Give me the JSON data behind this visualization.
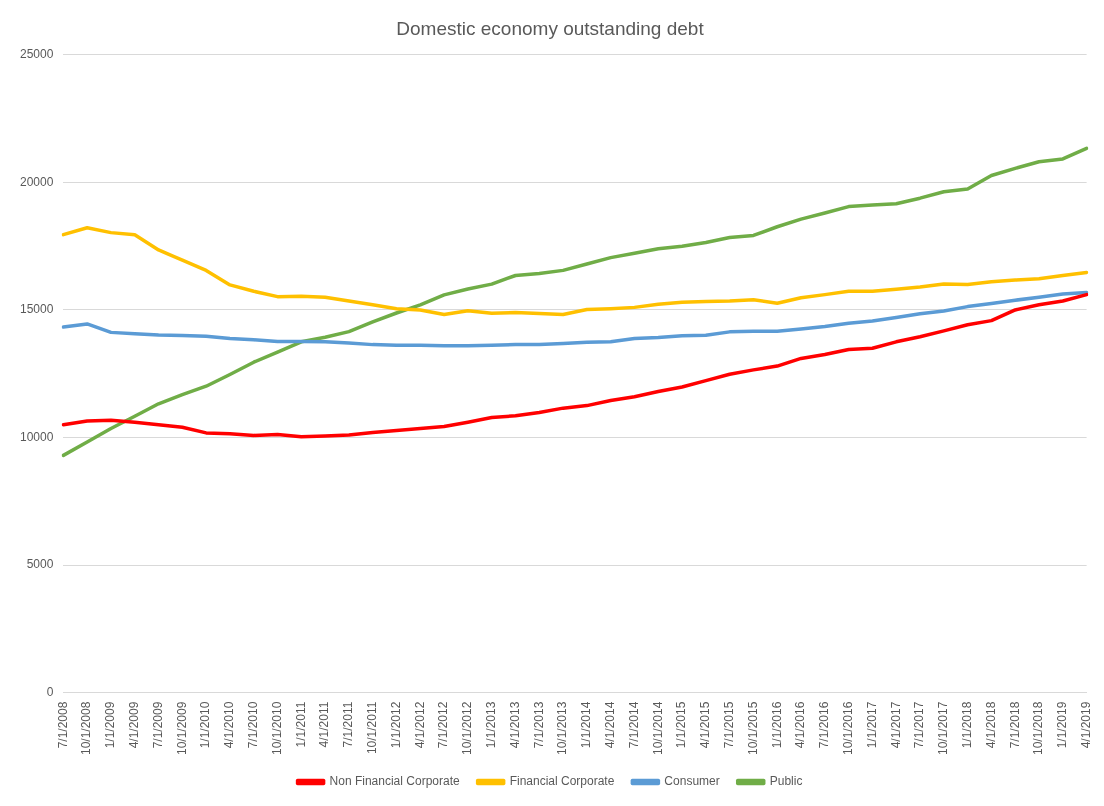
{
  "chart_data": {
    "type": "line",
    "title": "Domestic economy outstanding debt",
    "categories": [
      "7/1/2008",
      "10/1/2008",
      "1/1/2009",
      "4/1/2009",
      "7/1/2009",
      "10/1/2009",
      "1/1/2010",
      "4/1/2010",
      "7/1/2010",
      "10/1/2010",
      "1/1/2011",
      "4/1/2011",
      "7/1/2011",
      "10/1/2011",
      "1/1/2012",
      "4/1/2012",
      "7/1/2012",
      "10/1/2012",
      "1/1/2013",
      "4/1/2013",
      "7/1/2013",
      "10/1/2013",
      "1/1/2014",
      "4/1/2014",
      "7/1/2014",
      "10/1/2014",
      "1/1/2015",
      "4/1/2015",
      "7/1/2015",
      "10/1/2015",
      "1/1/2016",
      "4/1/2016",
      "7/1/2016",
      "10/1/2016",
      "1/1/2017",
      "4/1/2017",
      "7/1/2017",
      "10/1/2017",
      "1/1/2018",
      "4/1/2018",
      "7/1/2018",
      "10/1/2018",
      "1/1/2019",
      "4/1/2019"
    ],
    "series": [
      {
        "name": "Non Financial Corporate",
        "color": "#ff0000",
        "values": [
          10500,
          10650,
          10680,
          10600,
          10500,
          10400,
          10180,
          10150,
          10080,
          10120,
          10030,
          10060,
          10100,
          10200,
          10270,
          10350,
          10430,
          10600,
          10780,
          10850,
          10980,
          11150,
          11250,
          11450,
          11600,
          11800,
          11980,
          12230,
          12480,
          12650,
          12800,
          13100,
          13250,
          13450,
          13500,
          13750,
          13950,
          14180,
          14420,
          14580,
          15000,
          15200,
          15350,
          15600
        ]
      },
      {
        "name": "Financial Corporate",
        "color": "#ffc000",
        "values": [
          17950,
          18220,
          18030,
          17950,
          17350,
          16950,
          16550,
          15980,
          15730,
          15520,
          15540,
          15500,
          15350,
          15200,
          15050,
          15000,
          14820,
          14970,
          14870,
          14900,
          14860,
          14820,
          15020,
          15050,
          15100,
          15220,
          15300,
          15330,
          15350,
          15400,
          15260,
          15480,
          15600,
          15730,
          15730,
          15810,
          15900,
          16020,
          16000,
          16100,
          16170,
          16220,
          16350,
          16470
        ]
      },
      {
        "name": "Consumer",
        "color": "#5b9bd5",
        "values": [
          14330,
          14450,
          14120,
          14070,
          14020,
          14000,
          13970,
          13880,
          13830,
          13760,
          13760,
          13750,
          13700,
          13640,
          13620,
          13620,
          13600,
          13600,
          13620,
          13640,
          13640,
          13680,
          13730,
          13750,
          13880,
          13920,
          13990,
          14010,
          14140,
          14160,
          14160,
          14250,
          14350,
          14480,
          14570,
          14700,
          14850,
          14960,
          15130,
          15250,
          15380,
          15500,
          15620,
          15680
        ]
      },
      {
        "name": "Public",
        "color": "#70ad47",
        "values": [
          9300,
          9820,
          10350,
          10830,
          11320,
          11680,
          12010,
          12470,
          12950,
          13350,
          13750,
          13930,
          14150,
          14530,
          14880,
          15200,
          15590,
          15820,
          16010,
          16350,
          16430,
          16550,
          16800,
          17050,
          17220,
          17400,
          17500,
          17640,
          17840,
          17920,
          18260,
          18560,
          18800,
          19050,
          19110,
          19160,
          19380,
          19630,
          19740,
          20270,
          20550,
          20810,
          20920,
          21330
        ]
      }
    ],
    "ylim": [
      0,
      25000
    ],
    "yticks": [
      0,
      5000,
      10000,
      15000,
      20000,
      25000
    ],
    "grid": "y",
    "legend": "bottom",
    "marker": "none",
    "line_style": "solid"
  }
}
